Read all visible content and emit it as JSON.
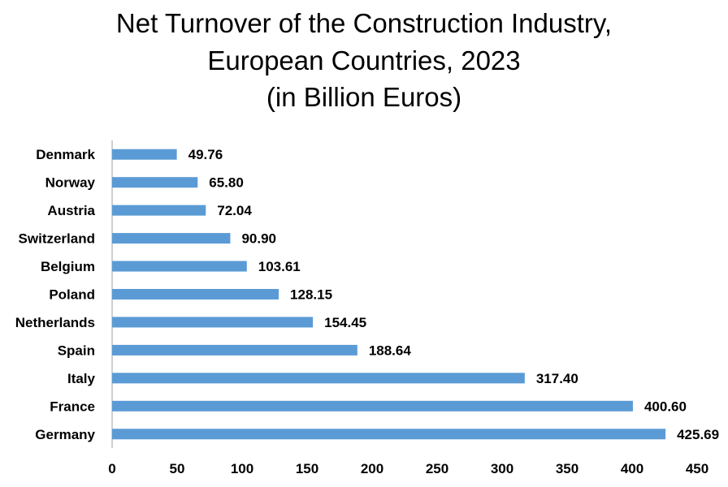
{
  "chart_data": {
    "type": "bar",
    "orientation": "horizontal",
    "title_lines": [
      "Net Turnover of the Construction Industry,",
      "European Countries, 2023",
      "(in Billion Euros)"
    ],
    "categories": [
      "Denmark",
      "Norway",
      "Austria",
      "Switzerland",
      "Belgium",
      "Poland",
      "Netherlands",
      "Spain",
      "Italy",
      "France",
      "Germany"
    ],
    "values": [
      49.76,
      65.8,
      72.04,
      90.9,
      103.61,
      128.15,
      154.45,
      188.64,
      317.4,
      400.6,
      425.69
    ],
    "value_labels": [
      "49.76",
      "65.80",
      "72.04",
      "90.90",
      "103.61",
      "128.15",
      "154.45",
      "188.64",
      "317.40",
      "400.60",
      "425.69"
    ],
    "xlim": [
      0,
      450
    ],
    "xticks": [
      "0",
      "50",
      "100",
      "150",
      "200",
      "250",
      "300",
      "350",
      "400",
      "450"
    ],
    "xlabel": "",
    "ylabel": "",
    "grid": false,
    "legend": "none",
    "bar_color": "#5b9bd5",
    "axis_color": "#bfbfbf"
  }
}
